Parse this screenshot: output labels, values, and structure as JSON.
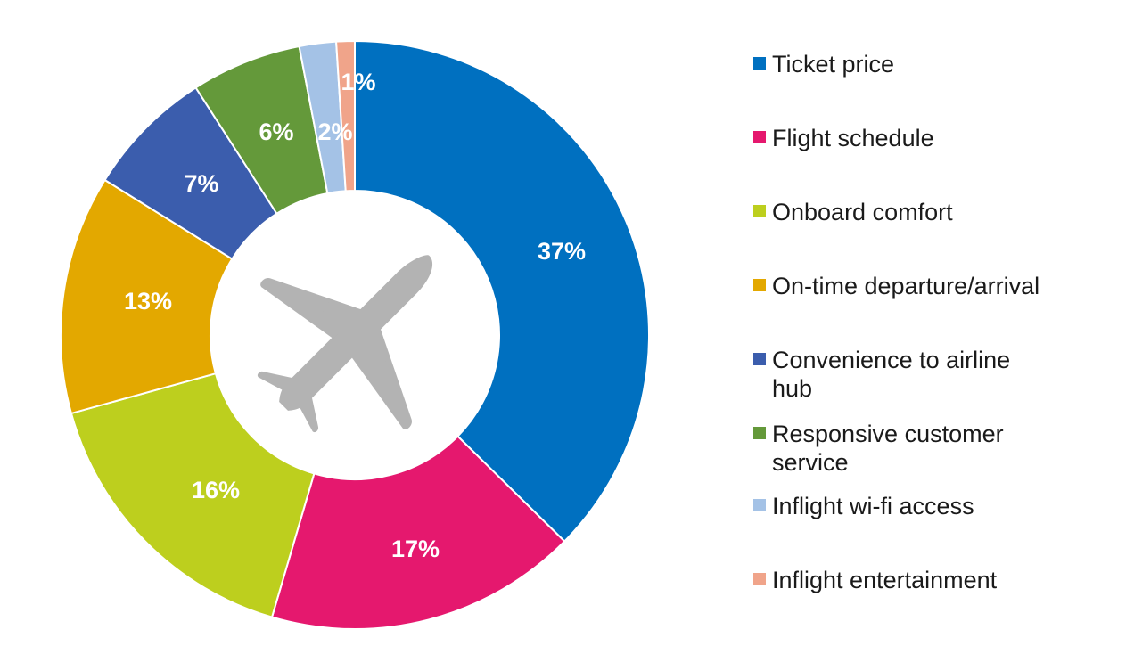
{
  "chart_data": {
    "type": "pie",
    "donut": true,
    "center_icon": "airplane-icon",
    "slices": [
      {
        "label": "Ticket price",
        "value": 37,
        "display": "37%",
        "color": "#0070C0"
      },
      {
        "label": "Flight schedule",
        "value": 17,
        "display": "17%",
        "color": "#E5186E"
      },
      {
        "label": "Onboard comfort",
        "value": 16,
        "display": "16%",
        "color": "#BDCF1E"
      },
      {
        "label": "On-time departure/arrival",
        "value": 13,
        "display": "13%",
        "color": "#E3A800"
      },
      {
        "label": "Convenience to airline hub",
        "value": 7,
        "display": "7%",
        "color": "#3B5DAD"
      },
      {
        "label": "Responsive customer service",
        "value": 6,
        "display": "6%",
        "color": "#64993A"
      },
      {
        "label": "Inflight wi-fi access",
        "value": 2,
        "display": "2%",
        "color": "#A4C2E6"
      },
      {
        "label": "Inflight entertainment",
        "value": 1,
        "display": "1%",
        "color": "#F0A48A"
      }
    ],
    "legend_position": "right",
    "icon_color": "#B3B3B3"
  }
}
